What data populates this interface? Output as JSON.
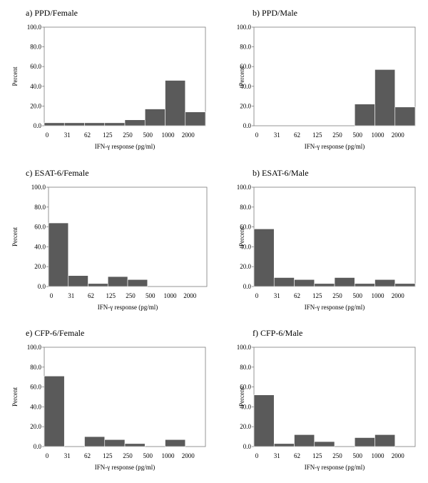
{
  "chart_data": [
    {
      "type": "bar",
      "title": "a) PPD/Female",
      "categories": [
        "0",
        "31",
        "62",
        "125",
        "250",
        "500",
        "1000",
        "2000"
      ],
      "xlabel": "IFN-γ response (pg/ml)",
      "ylabel": "Percent",
      "yticks": [
        "0.0",
        "20.0",
        "40.0",
        "60.0",
        "80.0",
        "100.0"
      ],
      "ylim": [
        0,
        100
      ],
      "values": [
        3,
        3,
        3,
        3,
        6,
        17,
        46,
        14
      ]
    },
    {
      "type": "bar",
      "title": "b) PPD/Male",
      "categories": [
        "0",
        "31",
        "62",
        "125",
        "250",
        "500",
        "1000",
        "2000"
      ],
      "xlabel": "IFN-γ response (pg/ml)",
      "ylabel": "Percent",
      "yticks": [
        "0.0",
        "20.0",
        "40.0",
        "60.0",
        "80.0",
        "100.0"
      ],
      "ylim": [
        0,
        100
      ],
      "values": [
        0,
        0,
        0,
        0,
        0,
        22,
        57,
        19
      ]
    },
    {
      "type": "bar",
      "title": "c) ESAT-6/Female",
      "categories": [
        "0",
        "31",
        "62",
        "125",
        "250",
        "500",
        "1000",
        "2000"
      ],
      "xlabel": "IFN-γ response (pg/ml)",
      "ylabel": "Percent",
      "yticks": [
        "0.0",
        "20.0",
        "40.0",
        "60.0",
        "80.0",
        "100.0"
      ],
      "ylim": [
        0,
        100
      ],
      "values": [
        64,
        11,
        3,
        10,
        7,
        0,
        0,
        0
      ]
    },
    {
      "type": "bar",
      "title": "b) ESAT-6/Male",
      "categories": [
        "0",
        "31",
        "62",
        "125",
        "250",
        "500",
        "1000",
        "2000"
      ],
      "xlabel": "IFN-γ response (pg/ml)",
      "ylabel": "Percent",
      "yticks": [
        "0.0",
        "20.0",
        "40.0",
        "60.0",
        "80.0",
        "100.0"
      ],
      "ylim": [
        0,
        100
      ],
      "values": [
        58,
        9,
        7,
        3,
        9,
        3,
        7,
        3
      ]
    },
    {
      "type": "bar",
      "title": "e) CFP-6/Female",
      "categories": [
        "0",
        "31",
        "62",
        "125",
        "250",
        "500",
        "1000",
        "2000"
      ],
      "xlabel": "IFN-γ response (pg/ml)",
      "ylabel": "Percent",
      "yticks": [
        "0.0",
        "20.0",
        "40.0",
        "60.0",
        "80.0",
        "100.0"
      ],
      "ylim": [
        0,
        100
      ],
      "values": [
        71,
        0,
        10,
        7,
        3,
        0,
        7,
        0
      ]
    },
    {
      "type": "bar",
      "title": "f) CFP-6/Male",
      "categories": [
        "0",
        "31",
        "62",
        "125",
        "250",
        "500",
        "1000",
        "2000"
      ],
      "xlabel": "IFN-γ response (pg/ml)",
      "ylabel": "Percent",
      "yticks": [
        "0.0",
        "20.0",
        "40.0",
        "60.0",
        "80.0",
        "100.0"
      ],
      "ylim": [
        0,
        100
      ],
      "values": [
        52,
        3,
        12,
        5,
        0,
        9,
        12,
        0
      ]
    }
  ],
  "colors": {
    "bar": "#5a5a5a",
    "frame": "#7a7a7a"
  }
}
